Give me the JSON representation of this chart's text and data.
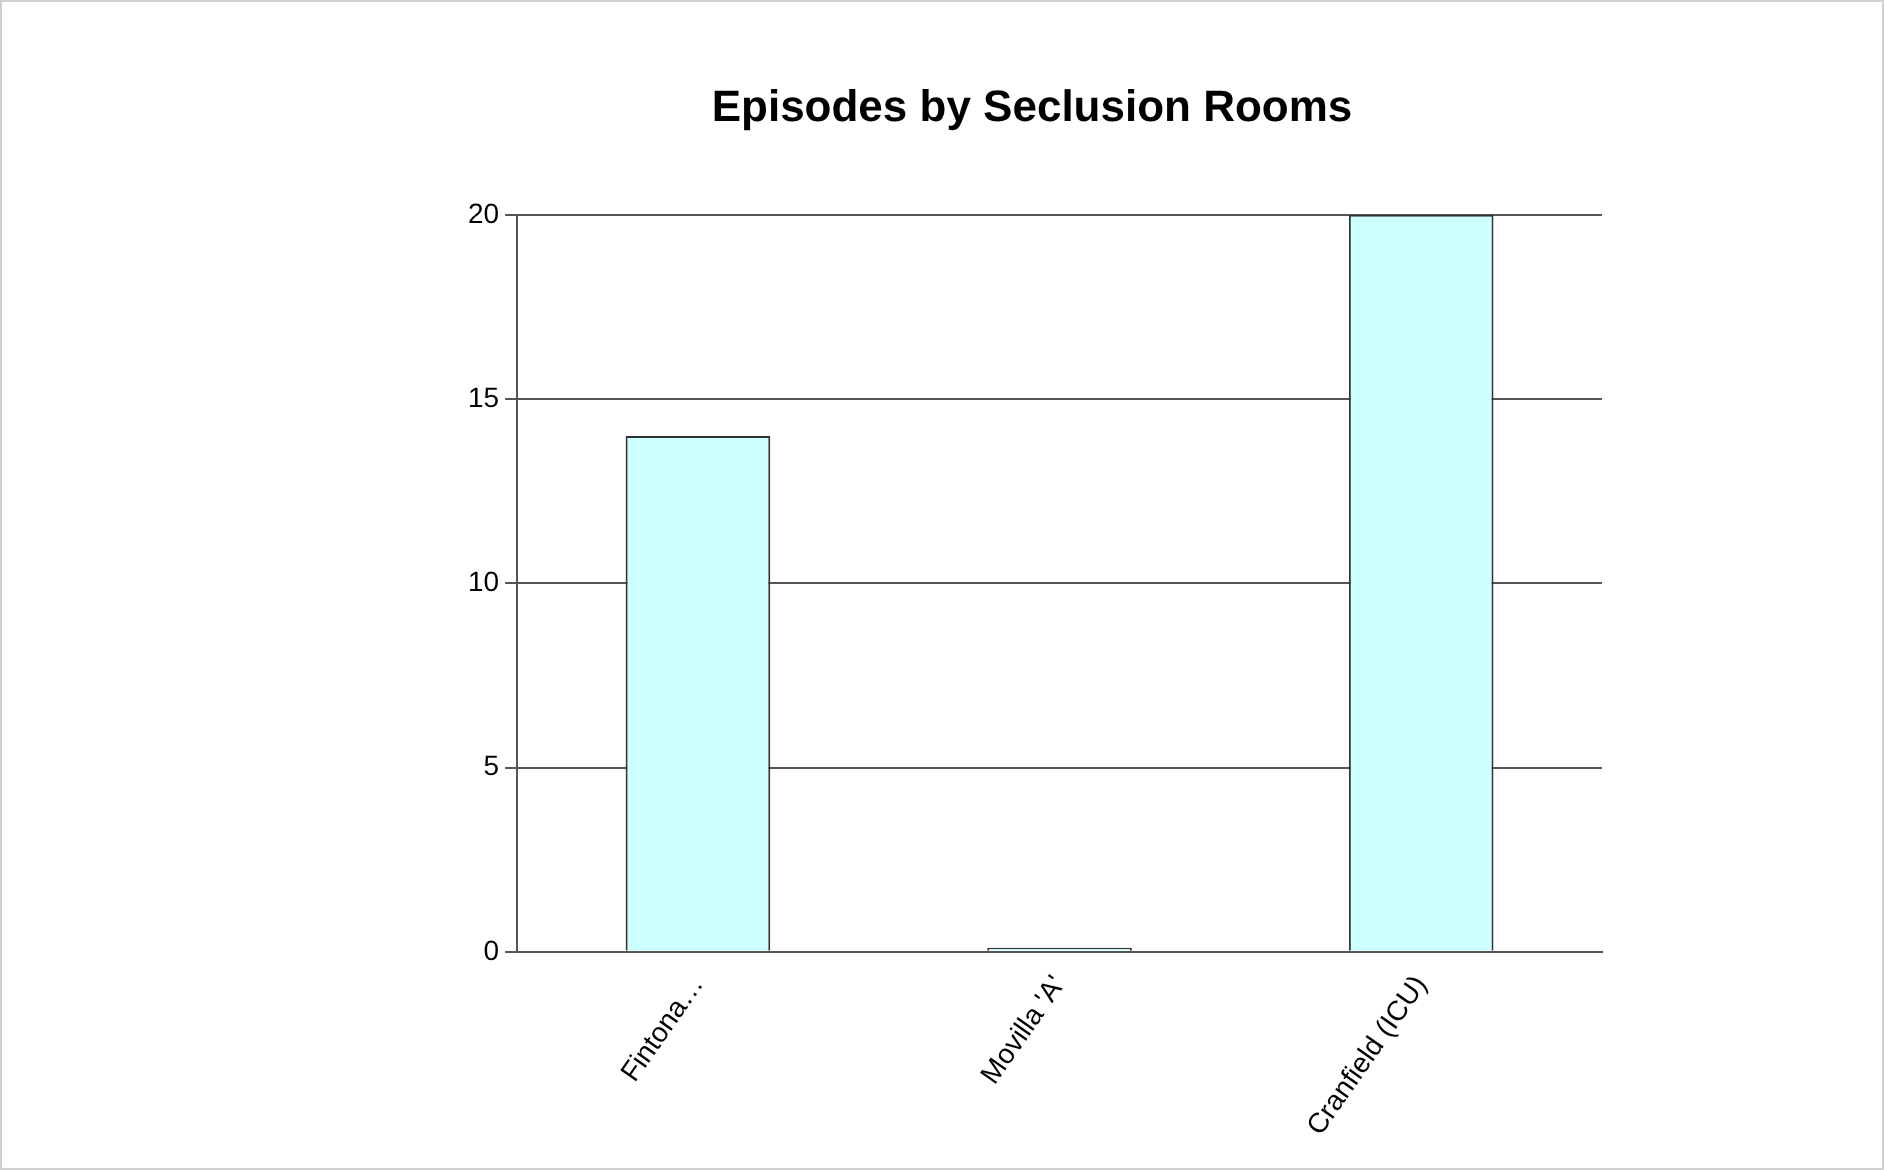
{
  "chart_data": {
    "type": "bar",
    "title": "Episodes by Seclusion Rooms",
    "categories": [
      "Fintona…",
      "Movilla 'A'",
      "Cranfield (ICU)"
    ],
    "values": [
      14,
      0,
      20
    ],
    "color": "#ccffff",
    "ylim": [
      0,
      20
    ],
    "yticks": [
      0,
      5,
      10,
      15,
      20
    ],
    "grid": "y"
  }
}
